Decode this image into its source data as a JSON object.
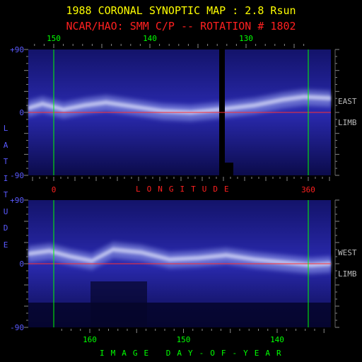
{
  "chart_data": [
    {
      "type": "heatmap",
      "title": "1988 CORONAL SYNOPTIC MAP : 2.8 Rsun",
      "subtitle": "NCAR/HAO: SMM C/P -- ROTATION # 1802",
      "panel": "EAST LIMB",
      "limb_label": [
        "EAST",
        "LIMB"
      ],
      "top_axis_ticks": [
        {
          "value": 150,
          "label": "150"
        },
        {
          "value": 140,
          "label": "140"
        },
        {
          "value": 130,
          "label": "130"
        }
      ],
      "bottom_axis_ticks": [
        {
          "value": 0,
          "label": "0"
        },
        {
          "value": 360,
          "label": "360"
        }
      ],
      "xlabel": "LONGITUDE",
      "ylim": [
        -90,
        90
      ],
      "y_ticks": [
        {
          "value": 90,
          "label": "+90"
        },
        {
          "value": 0,
          "label": "0"
        },
        {
          "value": -90,
          "label": "-90"
        }
      ],
      "data_gap_longitude": [
        -13,
        -8
      ]
    },
    {
      "type": "heatmap",
      "panel": "WEST LIMB",
      "limb_label": [
        "WEST",
        "LIMB"
      ],
      "bottom_axis_ticks": [
        {
          "value": 160,
          "label": "160"
        },
        {
          "value": 150,
          "label": "150"
        },
        {
          "value": 140,
          "label": "140"
        }
      ],
      "xlabel": "IMAGE DAY-OF-YEAR",
      "ylabel": "LATITUDE",
      "ylim": [
        -90,
        90
      ],
      "y_ticks": [
        {
          "value": 90,
          "label": "+90"
        },
        {
          "value": 0,
          "label": "0"
        },
        {
          "value": -90,
          "label": "-90"
        }
      ]
    }
  ],
  "colors": {
    "title": "#ffff00",
    "subtitle": "#ff2020",
    "axis_labels": "#5a5aff",
    "guide_lines": "#00ff00",
    "equator": "#ff3030",
    "map_background": "#0a0a4a",
    "streamer": "#e8ecff"
  }
}
